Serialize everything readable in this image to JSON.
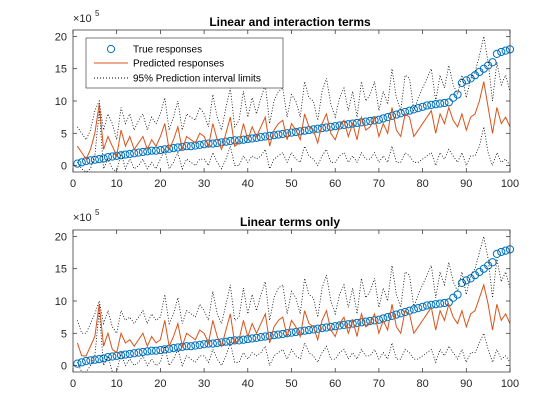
{
  "colors": {
    "true_marker": "#0072BD",
    "predicted": "#D95319",
    "interval": "#000000",
    "axis": "#262626",
    "background": "#ffffff"
  },
  "legend": {
    "placement": "top-left",
    "entries": [
      "True responses",
      "Predicted responses",
      "95% Prediction interval limits"
    ]
  },
  "chart_data": [
    {
      "type": "line",
      "title": "Linear and interaction terms",
      "xlabel": "",
      "ylabel": "",
      "xlim": [
        0,
        100
      ],
      "ylim": [
        -1,
        21
      ],
      "y_multiplier": "×10",
      "y_exponent": "5",
      "xticks": [
        "0",
        "10",
        "20",
        "30",
        "40",
        "50",
        "60",
        "70",
        "80",
        "90",
        "100"
      ],
      "yticks": [
        "0",
        "5",
        "10",
        "15",
        "20"
      ],
      "ytick_values": [
        0,
        5,
        10,
        15,
        20
      ],
      "x": [
        1,
        2,
        3,
        4,
        5,
        6,
        7,
        8,
        9,
        10,
        11,
        12,
        13,
        14,
        15,
        16,
        17,
        18,
        19,
        20,
        21,
        22,
        23,
        24,
        25,
        26,
        27,
        28,
        29,
        30,
        31,
        32,
        33,
        34,
        35,
        36,
        37,
        38,
        39,
        40,
        41,
        42,
        43,
        44,
        45,
        46,
        47,
        48,
        49,
        50,
        51,
        52,
        53,
        54,
        55,
        56,
        57,
        58,
        59,
        60,
        61,
        62,
        63,
        64,
        65,
        66,
        67,
        68,
        69,
        70,
        71,
        72,
        73,
        74,
        75,
        76,
        77,
        78,
        79,
        80,
        81,
        82,
        83,
        84,
        85,
        86,
        87,
        88,
        89,
        90,
        91,
        92,
        93,
        94,
        95,
        96,
        97,
        98,
        99,
        100
      ],
      "series": [
        {
          "name": "True responses",
          "style": "circle",
          "values": [
            0.3,
            0.5,
            0.7,
            0.8,
            0.9,
            1.0,
            1.1,
            1.3,
            1.4,
            1.5,
            1.6,
            1.7,
            1.8,
            1.9,
            2.0,
            2.1,
            2.2,
            2.3,
            2.3,
            2.4,
            2.5,
            2.6,
            2.7,
            2.8,
            2.9,
            3.0,
            3.0,
            3.1,
            3.2,
            3.3,
            3.4,
            3.4,
            3.5,
            3.6,
            3.7,
            3.8,
            3.9,
            3.9,
            4.0,
            4.1,
            4.2,
            4.3,
            4.4,
            4.5,
            4.6,
            4.7,
            4.8,
            4.9,
            5.0,
            5.1,
            5.2,
            5.3,
            5.4,
            5.5,
            5.6,
            5.7,
            5.8,
            5.9,
            6.0,
            6.1,
            6.2,
            6.3,
            6.4,
            6.5,
            6.6,
            6.7,
            6.8,
            6.9,
            7.0,
            7.1,
            7.3,
            7.5,
            7.7,
            7.9,
            8.1,
            8.3,
            8.5,
            8.7,
            8.9,
            9.1,
            9.3,
            9.4,
            9.5,
            9.6,
            9.7,
            9.8,
            10.5,
            11.0,
            12.8,
            13.2,
            13.5,
            14.0,
            14.5,
            15.0,
            15.5,
            16.0,
            17.3,
            17.6,
            17.8,
            18.0
          ]
        },
        {
          "name": "Predicted responses",
          "style": "solid",
          "values": [
            3.0,
            2.0,
            1.0,
            2.5,
            5.0,
            9.5,
            2.5,
            4.5,
            3.0,
            1.5,
            5.5,
            3.0,
            4.5,
            2.5,
            3.5,
            4.5,
            2.5,
            4.0,
            3.0,
            4.5,
            6.5,
            2.5,
            4.0,
            6.0,
            2.5,
            4.5,
            4.0,
            3.5,
            5.0,
            4.5,
            3.0,
            6.5,
            4.0,
            2.5,
            5.0,
            7.5,
            3.0,
            3.5,
            6.5,
            4.0,
            6.0,
            4.5,
            6.0,
            7.5,
            3.0,
            5.5,
            6.5,
            7.0,
            4.0,
            6.5,
            5.5,
            4.0,
            8.0,
            6.0,
            5.5,
            3.5,
            6.5,
            8.0,
            5.0,
            4.0,
            6.0,
            7.0,
            4.5,
            6.5,
            4.0,
            7.5,
            5.5,
            6.0,
            7.5,
            4.5,
            6.5,
            5.0,
            9.0,
            5.5,
            4.5,
            8.0,
            7.5,
            4.5,
            5.5,
            6.5,
            7.5,
            8.5,
            5.0,
            8.0,
            6.5,
            9.0,
            7.0,
            6.0,
            8.0,
            5.5,
            7.5,
            8.0,
            10.0,
            13.0,
            9.0,
            5.0,
            9.0,
            6.5,
            7.5,
            6.0
          ]
        },
        {
          "name": "95% Prediction interval limits",
          "style": "dotted",
          "values": [
            6.0,
            5.0,
            4.0,
            5.5,
            8.5,
            10.0,
            5.5,
            8.0,
            6.5,
            4.0,
            9.0,
            6.5,
            8.0,
            5.5,
            7.0,
            8.0,
            5.5,
            7.5,
            6.5,
            8.0,
            10.5,
            5.5,
            7.5,
            10.0,
            5.5,
            8.0,
            7.5,
            7.0,
            9.0,
            8.0,
            6.0,
            11.0,
            7.5,
            5.5,
            9.0,
            12.0,
            6.0,
            7.0,
            11.5,
            7.5,
            10.5,
            8.0,
            10.5,
            12.5,
            6.5,
            10.0,
            11.5,
            12.0,
            7.5,
            11.0,
            10.0,
            7.5,
            13.0,
            10.5,
            10.0,
            7.0,
            11.5,
            13.5,
            9.5,
            7.5,
            10.5,
            12.0,
            8.5,
            11.5,
            7.5,
            13.0,
            10.0,
            11.0,
            13.0,
            8.5,
            11.5,
            9.5,
            15.0,
            10.5,
            8.5,
            14.0,
            13.5,
            8.5,
            10.5,
            12.0,
            13.5,
            15.0,
            10.0,
            14.0,
            12.0,
            15.5,
            12.5,
            11.0,
            14.0,
            10.5,
            13.5,
            14.5,
            17.0,
            20.0,
            16.0,
            10.0,
            16.0,
            12.5,
            14.0,
            11.5
          ]
        },
        {
          "name": "",
          "style": "dotted",
          "values": [
            0.5,
            -0.5,
            -1.0,
            -0.5,
            1.5,
            8.5,
            -0.5,
            1.0,
            -0.5,
            -1.0,
            2.0,
            -0.5,
            1.0,
            -0.5,
            0.0,
            1.0,
            -0.5,
            0.5,
            -0.5,
            1.0,
            2.5,
            -0.5,
            0.5,
            2.0,
            -0.5,
            1.0,
            0.5,
            0.0,
            1.0,
            1.0,
            0.0,
            2.0,
            0.5,
            -0.5,
            1.0,
            3.0,
            0.0,
            0.0,
            1.5,
            0.5,
            1.5,
            1.0,
            1.5,
            2.5,
            -0.5,
            1.0,
            1.5,
            2.0,
            0.5,
            2.0,
            1.0,
            0.5,
            3.0,
            1.5,
            1.0,
            0.0,
            1.5,
            2.5,
            0.5,
            0.5,
            1.5,
            2.0,
            0.5,
            1.5,
            0.5,
            2.0,
            1.0,
            1.0,
            2.0,
            0.5,
            1.5,
            0.5,
            3.0,
            0.5,
            0.5,
            2.0,
            1.5,
            0.5,
            0.5,
            1.0,
            1.5,
            2.0,
            0.0,
            2.0,
            1.0,
            2.5,
            1.5,
            0.5,
            2.0,
            0.0,
            1.5,
            1.5,
            3.0,
            6.0,
            2.0,
            0.0,
            2.0,
            0.5,
            1.0,
            0.0
          ]
        }
      ]
    },
    {
      "type": "line",
      "title": "Linear terms only",
      "xlabel": "",
      "ylabel": "",
      "xlim": [
        0,
        100
      ],
      "ylim": [
        -1,
        21
      ],
      "y_multiplier": "×10",
      "y_exponent": "5",
      "xticks": [
        "0",
        "10",
        "20",
        "30",
        "40",
        "50",
        "60",
        "70",
        "80",
        "90",
        "100"
      ],
      "yticks": [
        "0",
        "5",
        "10",
        "15",
        "20"
      ],
      "ytick_values": [
        0,
        5,
        10,
        15,
        20
      ],
      "x": [
        1,
        2,
        3,
        4,
        5,
        6,
        7,
        8,
        9,
        10,
        11,
        12,
        13,
        14,
        15,
        16,
        17,
        18,
        19,
        20,
        21,
        22,
        23,
        24,
        25,
        26,
        27,
        28,
        29,
        30,
        31,
        32,
        33,
        34,
        35,
        36,
        37,
        38,
        39,
        40,
        41,
        42,
        43,
        44,
        45,
        46,
        47,
        48,
        49,
        50,
        51,
        52,
        53,
        54,
        55,
        56,
        57,
        58,
        59,
        60,
        61,
        62,
        63,
        64,
        65,
        66,
        67,
        68,
        69,
        70,
        71,
        72,
        73,
        74,
        75,
        76,
        77,
        78,
        79,
        80,
        81,
        82,
        83,
        84,
        85,
        86,
        87,
        88,
        89,
        90,
        91,
        92,
        93,
        94,
        95,
        96,
        97,
        98,
        99,
        100
      ],
      "series": [
        {
          "name": "True responses",
          "style": "circle",
          "values": [
            0.3,
            0.5,
            0.7,
            0.8,
            0.9,
            1.0,
            1.1,
            1.3,
            1.4,
            1.5,
            1.6,
            1.7,
            1.8,
            1.9,
            2.0,
            2.1,
            2.2,
            2.3,
            2.3,
            2.4,
            2.5,
            2.6,
            2.7,
            2.8,
            2.9,
            3.0,
            3.0,
            3.1,
            3.2,
            3.3,
            3.4,
            3.4,
            3.5,
            3.6,
            3.7,
            3.8,
            3.9,
            3.9,
            4.0,
            4.1,
            4.2,
            4.3,
            4.4,
            4.5,
            4.6,
            4.7,
            4.8,
            4.9,
            5.0,
            5.1,
            5.2,
            5.3,
            5.4,
            5.5,
            5.6,
            5.7,
            5.8,
            5.9,
            6.0,
            6.1,
            6.2,
            6.3,
            6.4,
            6.5,
            6.6,
            6.7,
            6.8,
            6.9,
            7.0,
            7.1,
            7.3,
            7.5,
            7.7,
            7.9,
            8.1,
            8.3,
            8.5,
            8.7,
            8.9,
            9.1,
            9.3,
            9.4,
            9.5,
            9.6,
            9.7,
            9.8,
            10.5,
            11.0,
            12.8,
            13.2,
            13.5,
            14.0,
            14.5,
            15.0,
            15.5,
            16.0,
            17.3,
            17.6,
            17.8,
            18.0
          ]
        },
        {
          "name": "Predicted responses",
          "style": "solid",
          "values": [
            3.5,
            1.5,
            1.5,
            3.0,
            4.5,
            9.5,
            3.0,
            5.0,
            2.5,
            2.0,
            5.0,
            3.5,
            4.0,
            3.0,
            4.0,
            5.0,
            3.0,
            4.5,
            3.5,
            4.0,
            7.0,
            3.0,
            4.5,
            6.5,
            3.0,
            5.0,
            4.5,
            4.0,
            5.5,
            5.0,
            3.5,
            7.0,
            4.5,
            3.0,
            5.5,
            8.0,
            3.5,
            4.0,
            7.0,
            4.5,
            6.5,
            5.0,
            6.5,
            8.0,
            3.5,
            6.0,
            7.0,
            7.5,
            4.5,
            7.0,
            6.0,
            4.5,
            8.5,
            6.5,
            6.0,
            4.0,
            7.0,
            8.5,
            5.5,
            4.5,
            6.5,
            7.5,
            5.0,
            7.0,
            4.5,
            8.0,
            6.0,
            6.5,
            8.0,
            5.0,
            7.0,
            5.5,
            9.5,
            6.0,
            5.0,
            8.5,
            8.0,
            5.0,
            6.0,
            7.0,
            8.0,
            9.0,
            5.5,
            8.5,
            7.0,
            9.5,
            7.5,
            6.5,
            8.5,
            6.0,
            8.0,
            8.5,
            10.5,
            12.5,
            9.5,
            5.5,
            9.5,
            7.0,
            8.0,
            6.5
          ]
        },
        {
          "name": "95% Prediction interval limits",
          "style": "dotted",
          "values": [
            7.0,
            5.0,
            5.0,
            6.5,
            8.0,
            10.0,
            6.5,
            8.5,
            6.0,
            5.0,
            8.5,
            7.0,
            7.5,
            6.5,
            7.5,
            8.5,
            6.5,
            8.0,
            7.0,
            7.5,
            11.0,
            6.5,
            8.0,
            10.5,
            6.5,
            8.5,
            8.0,
            7.5,
            9.5,
            8.5,
            7.0,
            11.5,
            8.0,
            6.5,
            9.5,
            12.5,
            7.0,
            7.5,
            12.0,
            8.0,
            11.0,
            8.5,
            11.0,
            13.0,
            7.0,
            10.5,
            12.0,
            12.5,
            8.0,
            11.5,
            10.5,
            8.0,
            13.5,
            11.0,
            10.5,
            7.5,
            12.0,
            14.0,
            10.0,
            8.0,
            11.0,
            12.5,
            9.0,
            12.0,
            8.0,
            13.5,
            10.5,
            11.5,
            13.5,
            9.0,
            12.0,
            10.0,
            15.5,
            11.0,
            9.0,
            14.5,
            14.0,
            9.0,
            11.0,
            12.5,
            14.0,
            15.5,
            10.5,
            14.5,
            12.5,
            16.0,
            13.0,
            11.5,
            14.5,
            11.0,
            14.0,
            15.0,
            17.5,
            20.0,
            16.5,
            10.5,
            16.5,
            13.0,
            14.5,
            12.0
          ]
        },
        {
          "name": "",
          "style": "dotted",
          "values": [
            0.5,
            -1.0,
            -1.0,
            0.0,
            1.5,
            8.5,
            0.0,
            1.5,
            -1.0,
            -1.0,
            2.0,
            0.0,
            1.0,
            0.0,
            0.5,
            1.5,
            0.0,
            1.0,
            0.0,
            0.5,
            3.0,
            0.0,
            1.0,
            2.5,
            0.0,
            1.5,
            1.0,
            0.5,
            1.5,
            1.5,
            0.5,
            2.5,
            1.0,
            0.0,
            1.5,
            3.5,
            0.5,
            0.5,
            2.0,
            1.0,
            2.0,
            1.5,
            2.0,
            3.0,
            0.0,
            1.5,
            2.0,
            2.5,
            1.0,
            2.5,
            1.5,
            1.0,
            3.5,
            2.0,
            1.5,
            0.5,
            2.0,
            3.0,
            1.0,
            1.0,
            2.0,
            2.5,
            1.0,
            2.0,
            1.0,
            2.5,
            1.5,
            1.5,
            2.5,
            1.0,
            2.0,
            1.0,
            3.5,
            1.0,
            1.0,
            2.5,
            2.0,
            1.0,
            1.0,
            1.5,
            2.0,
            2.5,
            0.5,
            2.5,
            1.5,
            3.0,
            2.0,
            1.0,
            2.5,
            0.5,
            2.0,
            2.0,
            3.5,
            5.0,
            2.5,
            0.5,
            2.5,
            1.0,
            1.5,
            0.5
          ]
        }
      ]
    }
  ]
}
